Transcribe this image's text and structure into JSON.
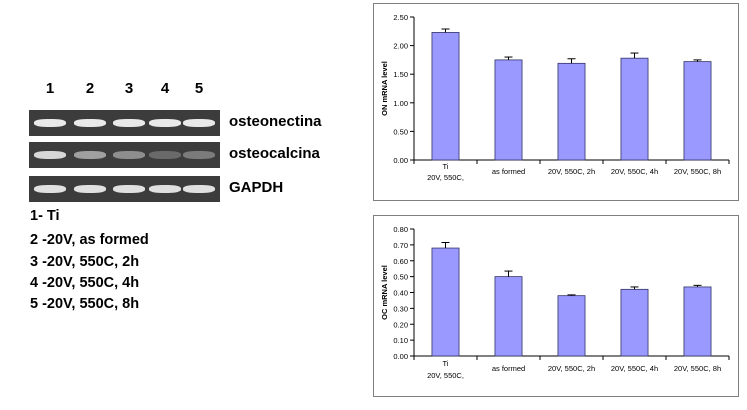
{
  "gel": {
    "lanes": [
      "1",
      "2",
      "3",
      "4",
      "5"
    ],
    "genes": [
      "osteonectina",
      "osteocalcina",
      "GAPDH"
    ],
    "band_intensity": [
      [
        0.95,
        0.95,
        0.95,
        0.95,
        0.95
      ],
      [
        0.85,
        0.55,
        0.45,
        0.25,
        0.35
      ],
      [
        0.9,
        0.9,
        0.9,
        0.9,
        0.9
      ]
    ]
  },
  "legend": [
    "1- Ti",
    "2 -20V, as formed",
    "3 -20V, 550C, 2h",
    "4 -20V, 550C, 4h",
    "5 -20V, 550C, 8h"
  ],
  "colors": {
    "bar_fill": "#9999ff",
    "bar_stroke": "#333366",
    "band": "#f2f2f2",
    "gel_bg": "#3c3c3c"
  },
  "chart_data": [
    {
      "type": "bar",
      "ylabel": "ON mRNA level",
      "ylim": [
        0,
        2.5
      ],
      "yticks": [
        "0.00",
        "0.50",
        "1.00",
        "1.50",
        "2.00",
        "2.50"
      ],
      "categories": [
        [
          "Ti",
          "20V, 550C,"
        ],
        [
          "as formed"
        ],
        [
          "20V, 550C, 2h"
        ],
        [
          "20V, 550C, 4h"
        ],
        [
          "20V, 550C, 8h"
        ]
      ],
      "values": [
        2.23,
        1.75,
        1.69,
        1.78,
        1.72
      ],
      "errors": [
        0.06,
        0.05,
        0.08,
        0.09,
        0.03
      ],
      "grid": false
    },
    {
      "type": "bar",
      "ylabel": "OC mRNA level",
      "ylim": [
        0,
        0.8
      ],
      "yticks": [
        "0.00",
        "0.10",
        "0.20",
        "0.30",
        "0.40",
        "0.50",
        "0.60",
        "0.70",
        "0.80"
      ],
      "categories": [
        [
          "Ti",
          "20V, 550C,"
        ],
        [
          "as formed"
        ],
        [
          "20V, 550C, 2h"
        ],
        [
          "20V, 550C, 4h"
        ],
        [
          "20V, 550C, 8h"
        ]
      ],
      "values": [
        0.68,
        0.5,
        0.38,
        0.42,
        0.435
      ],
      "errors": [
        0.035,
        0.035,
        0.005,
        0.015,
        0.01
      ],
      "grid": false
    }
  ]
}
